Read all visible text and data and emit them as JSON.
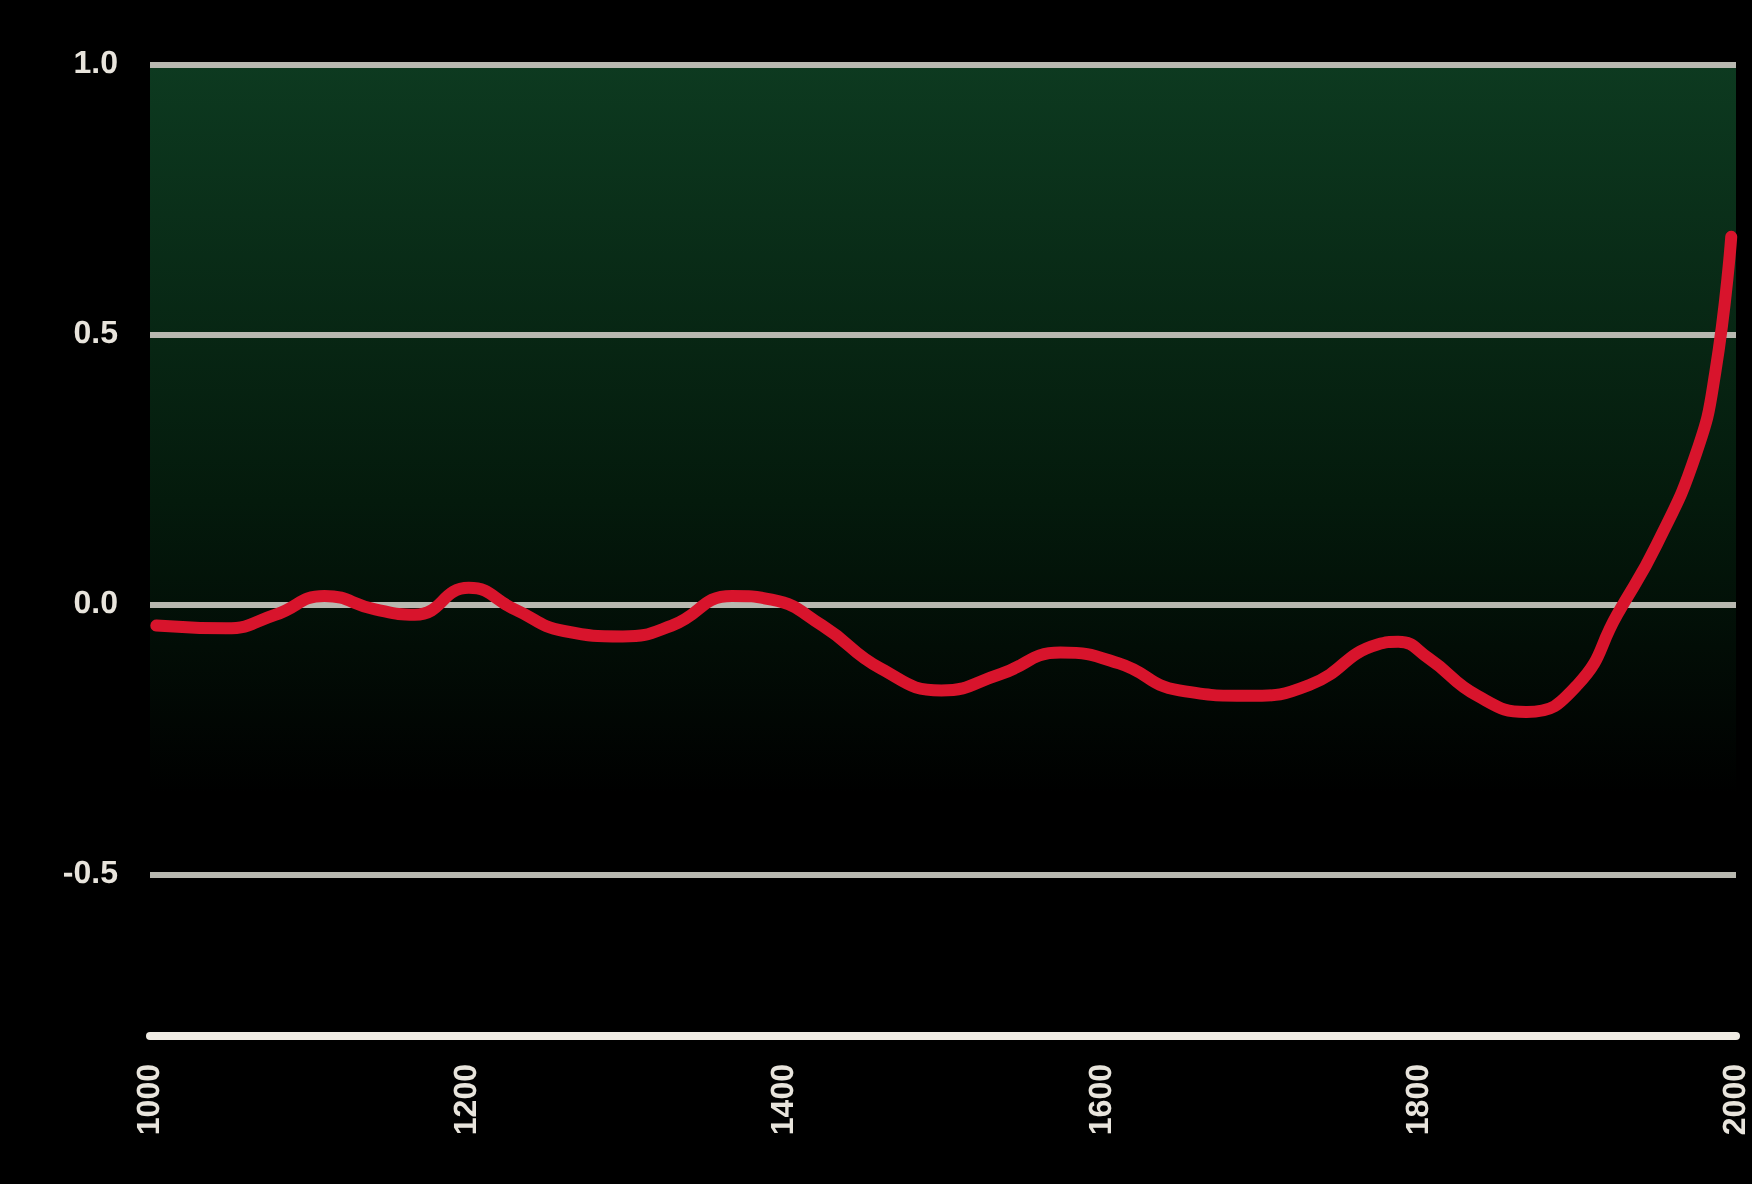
{
  "chart_data": {
    "type": "line",
    "x": [
      1004,
      1048,
      1079,
      1110,
      1142,
      1167,
      1201,
      1230,
      1261,
      1298,
      1329,
      1367,
      1392,
      1424,
      1461,
      1499,
      1536,
      1574,
      1611,
      1649,
      1693,
      1731,
      1774,
      1787,
      1806,
      1837,
      1868,
      1900,
      1925,
      1950,
      1975,
      1987,
      1997
    ],
    "series": [
      {
        "color": "#d8142c",
        "values": [
          -0.04,
          -0.045,
          -0.02,
          0.015,
          -0.01,
          -0.02,
          0.03,
          -0.01,
          -0.05,
          -0.06,
          -0.04,
          0.015,
          0.008,
          -0.04,
          -0.12,
          -0.16,
          -0.13,
          -0.09,
          -0.11,
          -0.16,
          -0.17,
          -0.15,
          -0.075,
          -0.07,
          -0.1,
          -0.17,
          -0.2,
          -0.15,
          -0.02,
          0.11,
          0.28,
          0.43,
          0.68
        ]
      }
    ],
    "xlim": [
      1000,
      2000
    ],
    "xticks": [
      1000,
      1200,
      1400,
      1600,
      1800,
      2000
    ],
    "ylim": [
      -0.8,
      1.0
    ],
    "yticks": [
      {
        "value": -0.5,
        "label": "-0.5"
      },
      {
        "value": 0,
        "label": "0.0"
      },
      {
        "value": 0.5,
        "label": "0.5"
      },
      {
        "value": 1.0,
        "label": "1.0"
      }
    ],
    "grid": "y",
    "marker": "none",
    "line_style": "solid"
  }
}
